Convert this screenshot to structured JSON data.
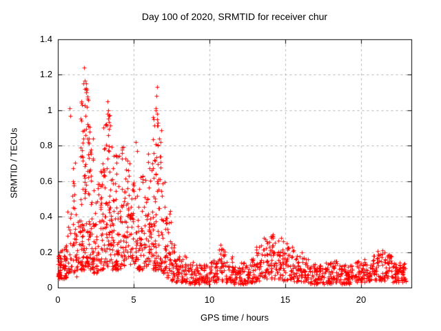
{
  "title": "Day 100 of 2020, SRMTID for receiver chur",
  "colors": {
    "background": "#ffffff",
    "frame": "#000000",
    "grid": "#b0b0b0",
    "marker": "#ff0000",
    "text": "#000000"
  },
  "chart_data": {
    "type": "scatter",
    "title": "Day 100 of 2020, SRMTID for receiver chur",
    "xlabel": "GPS time / hours",
    "ylabel": "SRMTID / TECUs",
    "xlim": [
      0,
      23.3
    ],
    "ylim": [
      0,
      1.4
    ],
    "x_ticks": [
      0,
      5,
      10,
      15,
      20
    ],
    "x_tick_labels": [
      "0",
      "5",
      "10",
      "15",
      "20"
    ],
    "y_ticks": [
      0,
      0.2,
      0.4,
      0.6,
      0.8,
      1.0,
      1.2,
      1.4
    ],
    "y_tick_labels": [
      "0",
      "0.2",
      "0.4",
      "0.6",
      "0.8",
      "1",
      "1.2",
      "1.4"
    ],
    "grid": true,
    "legend": "none",
    "marker": "plus",
    "marker_size_px": 7,
    "marker_color": "#ff0000",
    "seed": 1337,
    "sampling_note": "Dense scatter (~1800 pts) reconstructed from binned envelopes read off the chart; density_bands entries are [x_start_h, x_end_h, n_points, y_min_TECU, y_max_TECU, low_bias_exponent].",
    "density_bands": [
      [
        0.0,
        0.3,
        38,
        0.05,
        0.22,
        1.3
      ],
      [
        0.3,
        0.6,
        32,
        0.05,
        0.26,
        1.4
      ],
      [
        0.6,
        0.9,
        20,
        0.08,
        0.5,
        1.3
      ],
      [
        0.9,
        1.2,
        30,
        0.08,
        0.72,
        1.3
      ],
      [
        1.2,
        1.45,
        16,
        0.05,
        0.38,
        1.5
      ],
      [
        1.45,
        1.75,
        55,
        0.1,
        1.05,
        1.8
      ],
      [
        1.75,
        2.05,
        60,
        0.12,
        1.2,
        1.8
      ],
      [
        2.05,
        2.35,
        45,
        0.1,
        0.95,
        1.7
      ],
      [
        2.35,
        2.65,
        30,
        0.08,
        0.62,
        1.6
      ],
      [
        2.65,
        2.95,
        32,
        0.1,
        0.7,
        1.5
      ],
      [
        2.95,
        3.25,
        42,
        0.1,
        0.92,
        1.6
      ],
      [
        3.25,
        3.55,
        45,
        0.12,
        1.02,
        1.7
      ],
      [
        3.55,
        3.85,
        35,
        0.1,
        0.8,
        1.6
      ],
      [
        3.85,
        4.15,
        32,
        0.1,
        0.75,
        1.5
      ],
      [
        4.15,
        4.45,
        35,
        0.12,
        0.8,
        1.5
      ],
      [
        4.45,
        4.75,
        30,
        0.14,
        0.72,
        1.4
      ],
      [
        4.75,
        5.05,
        30,
        0.12,
        0.6,
        1.4
      ],
      [
        5.05,
        5.35,
        28,
        0.1,
        0.56,
        1.4
      ],
      [
        5.35,
        5.65,
        26,
        0.1,
        0.65,
        1.4
      ],
      [
        5.65,
        5.95,
        26,
        0.12,
        0.62,
        1.4
      ],
      [
        5.95,
        6.25,
        32,
        0.14,
        0.78,
        1.4
      ],
      [
        6.25,
        6.55,
        48,
        0.1,
        1.05,
        1.6
      ],
      [
        6.55,
        6.85,
        40,
        0.1,
        0.95,
        1.5
      ],
      [
        6.85,
        7.15,
        30,
        0.08,
        0.6,
        1.6
      ],
      [
        7.15,
        7.45,
        26,
        0.05,
        0.45,
        1.6
      ],
      [
        7.45,
        7.75,
        26,
        0.04,
        0.3,
        1.5
      ],
      [
        7.75,
        8.05,
        26,
        0.03,
        0.2,
        1.4
      ],
      [
        8.05,
        8.55,
        32,
        0.03,
        0.18,
        1.3
      ],
      [
        8.55,
        9.05,
        32,
        0.02,
        0.15,
        1.2
      ],
      [
        9.05,
        9.55,
        32,
        0.02,
        0.14,
        1.2
      ],
      [
        9.55,
        10.05,
        32,
        0.02,
        0.13,
        1.2
      ],
      [
        10.05,
        10.55,
        32,
        0.03,
        0.16,
        1.2
      ],
      [
        10.55,
        11.05,
        32,
        0.04,
        0.22,
        1.3
      ],
      [
        11.05,
        11.55,
        32,
        0.03,
        0.18,
        1.3
      ],
      [
        11.55,
        12.05,
        32,
        0.02,
        0.13,
        1.2
      ],
      [
        12.05,
        12.55,
        32,
        0.02,
        0.14,
        1.2
      ],
      [
        12.55,
        13.05,
        32,
        0.03,
        0.18,
        1.2
      ],
      [
        13.05,
        13.55,
        34,
        0.04,
        0.26,
        1.3
      ],
      [
        13.55,
        14.05,
        36,
        0.05,
        0.3,
        1.3
      ],
      [
        14.05,
        14.55,
        36,
        0.05,
        0.3,
        1.3
      ],
      [
        14.55,
        15.05,
        34,
        0.04,
        0.26,
        1.3
      ],
      [
        15.05,
        15.55,
        32,
        0.04,
        0.24,
        1.3
      ],
      [
        15.55,
        16.05,
        32,
        0.03,
        0.18,
        1.3
      ],
      [
        16.05,
        16.55,
        32,
        0.03,
        0.17,
        1.2
      ],
      [
        16.55,
        17.05,
        32,
        0.02,
        0.14,
        1.2
      ],
      [
        17.05,
        17.55,
        32,
        0.02,
        0.13,
        1.2
      ],
      [
        17.55,
        18.05,
        32,
        0.02,
        0.14,
        1.2
      ],
      [
        18.05,
        18.55,
        32,
        0.03,
        0.15,
        1.2
      ],
      [
        18.55,
        19.05,
        32,
        0.02,
        0.13,
        1.2
      ],
      [
        19.05,
        19.55,
        32,
        0.02,
        0.14,
        1.2
      ],
      [
        19.55,
        20.05,
        32,
        0.03,
        0.15,
        1.2
      ],
      [
        20.05,
        20.55,
        32,
        0.03,
        0.16,
        1.2
      ],
      [
        20.55,
        21.05,
        32,
        0.04,
        0.18,
        1.2
      ],
      [
        21.05,
        21.55,
        32,
        0.04,
        0.21,
        1.3
      ],
      [
        21.55,
        22.05,
        32,
        0.04,
        0.19,
        1.3
      ],
      [
        22.05,
        22.45,
        30,
        0.03,
        0.15,
        1.2
      ],
      [
        22.45,
        22.95,
        36,
        0.03,
        0.14,
        1.1
      ]
    ],
    "highlight_points": [
      [
        0.78,
        1.01
      ],
      [
        0.83,
        0.97
      ],
      [
        1.74,
        1.24
      ],
      [
        1.7,
        1.15
      ],
      [
        1.78,
        1.12
      ],
      [
        1.86,
        1.1
      ],
      [
        1.9,
        1.02
      ],
      [
        1.8,
        0.97
      ],
      [
        1.95,
        0.92
      ],
      [
        2.1,
        0.88
      ],
      [
        3.25,
        1.05
      ],
      [
        3.32,
        1.0
      ],
      [
        3.38,
        0.97
      ],
      [
        3.18,
        0.92
      ],
      [
        5.15,
        0.82
      ],
      [
        5.22,
        0.77
      ],
      [
        6.55,
        1.13
      ],
      [
        6.5,
        1.08
      ],
      [
        6.47,
        1.01
      ],
      [
        6.52,
        0.98
      ],
      [
        6.56,
        0.95
      ],
      [
        6.6,
        0.93
      ],
      [
        10.7,
        0.24
      ],
      [
        13.6,
        0.28
      ],
      [
        14.15,
        0.3
      ],
      [
        14.7,
        0.28
      ],
      [
        15.1,
        0.25
      ],
      [
        16.1,
        0.2
      ],
      [
        21.4,
        0.21
      ]
    ]
  }
}
